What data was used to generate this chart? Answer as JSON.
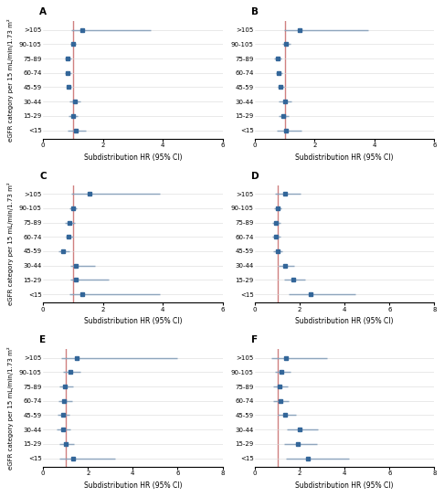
{
  "panels": [
    {
      "label": "A",
      "categories": [
        ">105",
        "90-105",
        "75-89",
        "60-74",
        "45-59",
        "30-44",
        "15-29",
        "<15"
      ],
      "hr": [
        1.3,
        1.0,
        0.82,
        0.83,
        0.86,
        1.05,
        1.0,
        1.08
      ],
      "lower": [
        0.95,
        0.9,
        0.72,
        0.74,
        0.78,
        0.88,
        0.86,
        0.82
      ],
      "upper": [
        3.6,
        1.1,
        0.93,
        0.93,
        0.95,
        1.25,
        1.16,
        1.42
      ],
      "ref_line": 1.0,
      "xlim": [
        0,
        6
      ],
      "xticks": [
        0,
        2,
        4,
        6
      ],
      "xlabel": "Subdistribution HR (95% CI)"
    },
    {
      "label": "B",
      "categories": [
        ">105",
        "90-105",
        "75-89",
        "60-74",
        "45-59",
        "30-44",
        "15-29",
        "<15"
      ],
      "hr": [
        1.5,
        1.05,
        0.76,
        0.8,
        0.86,
        1.0,
        0.95,
        1.05
      ],
      "lower": [
        0.98,
        0.93,
        0.64,
        0.69,
        0.75,
        0.8,
        0.8,
        0.72
      ],
      "upper": [
        3.8,
        1.18,
        0.89,
        0.92,
        0.98,
        1.23,
        1.12,
        1.55
      ],
      "ref_line": 1.0,
      "xlim": [
        0,
        6
      ],
      "xticks": [
        0,
        2,
        4,
        6
      ],
      "xlabel": "Subdistribution HR (95% CI)"
    },
    {
      "label": "C",
      "categories": [
        ">105",
        "90-105",
        "75-89",
        "60-74",
        "45-59",
        "30-44",
        "15-29",
        "<15"
      ],
      "hr": [
        1.55,
        1.0,
        0.88,
        0.86,
        0.68,
        1.1,
        1.1,
        1.3
      ],
      "lower": [
        0.95,
        0.88,
        0.74,
        0.75,
        0.52,
        0.9,
        0.9,
        0.88
      ],
      "upper": [
        3.9,
        1.12,
        1.06,
        1.0,
        0.88,
        1.75,
        2.2,
        3.9
      ],
      "ref_line": 1.0,
      "xlim": [
        0,
        6
      ],
      "xticks": [
        0,
        2,
        4,
        6
      ],
      "xlabel": "Subdistribution HR (95% CI)"
    },
    {
      "label": "D",
      "categories": [
        ">105",
        "90-105",
        "75-89",
        "60-74",
        "45-59",
        "30-44",
        "15-29",
        "<15"
      ],
      "hr": [
        1.35,
        1.0,
        0.95,
        0.95,
        1.0,
        1.35,
        1.7,
        2.5
      ],
      "lower": [
        0.9,
        0.85,
        0.78,
        0.78,
        0.82,
        1.05,
        1.3,
        1.5
      ],
      "upper": [
        2.05,
        1.18,
        1.16,
        1.15,
        1.22,
        1.75,
        2.25,
        4.5
      ],
      "ref_line": 1.0,
      "xlim": [
        0,
        8
      ],
      "xticks": [
        0,
        2,
        4,
        6,
        8
      ],
      "xlabel": "Subdistribution HR (95% CI)"
    },
    {
      "label": "E",
      "categories": [
        ">105",
        "90-105",
        "75-89",
        "60-74",
        "45-59",
        "30-44",
        "15-29",
        "<15"
      ],
      "hr": [
        1.5,
        1.2,
        0.98,
        0.95,
        0.88,
        0.88,
        1.0,
        1.35
      ],
      "lower": [
        0.8,
        0.88,
        0.72,
        0.7,
        0.64,
        0.62,
        0.72,
        0.72
      ],
      "upper": [
        6.0,
        1.65,
        1.32,
        1.28,
        1.18,
        1.22,
        1.38,
        3.2
      ],
      "ref_line": 1.0,
      "xlim": [
        0,
        8
      ],
      "xticks": [
        0,
        2,
        4,
        6,
        8
      ],
      "xlabel": "Subdistribution HR (95% CI)"
    },
    {
      "label": "F",
      "categories": [
        ">105",
        "90-105",
        "75-89",
        "60-74",
        "45-59",
        "30-44",
        "15-29",
        "<15"
      ],
      "hr": [
        1.4,
        1.2,
        1.1,
        1.12,
        1.35,
        2.0,
        1.9,
        2.35
      ],
      "lower": [
        0.72,
        0.9,
        0.8,
        0.82,
        1.0,
        1.42,
        1.3,
        1.38
      ],
      "upper": [
        3.2,
        1.6,
        1.48,
        1.52,
        1.82,
        2.82,
        2.75,
        4.2
      ],
      "ref_line": 1.0,
      "xlim": [
        0,
        8
      ],
      "xticks": [
        0,
        2,
        4,
        6,
        8
      ],
      "xlabel": "Subdistribution HR (95% CI)"
    }
  ],
  "ylabel": "eGFR category per 15 mL/min/1.73 m²",
  "dot_color": "#336699",
  "line_color": "#336699",
  "ref_color": "#D08080",
  "marker": "s",
  "markersize": 2.5,
  "line_width": 0.9,
  "fontsize_label": 5.5,
  "fontsize_tick": 5.0,
  "fontsize_panel": 7.5,
  "fontsize_ylabel": 5.0
}
